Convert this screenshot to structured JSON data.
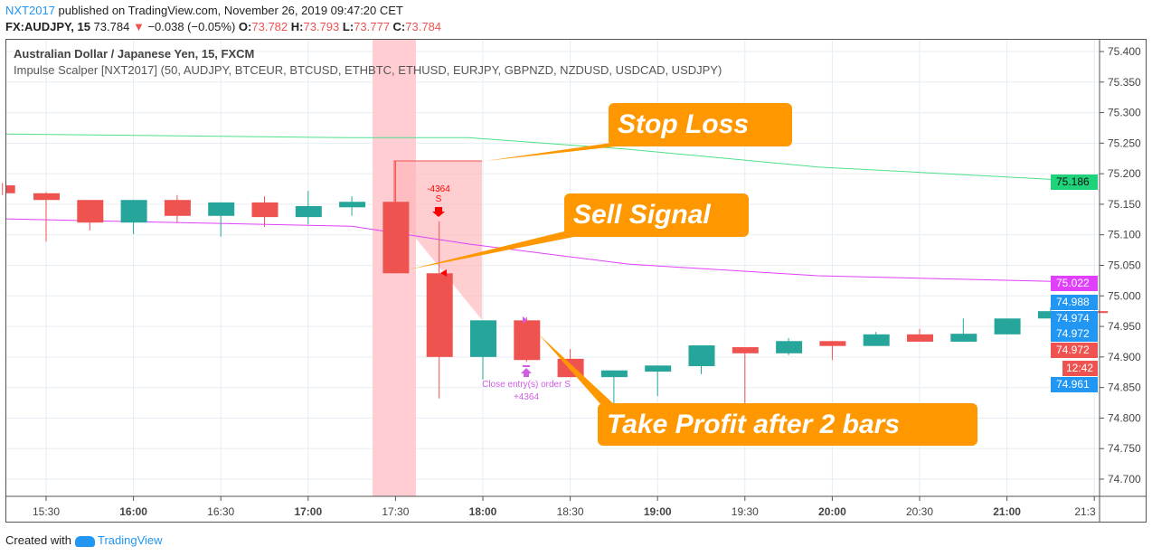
{
  "header": {
    "author": "NXT2017",
    "published": "published on TradingView.com, November 26, 2019 09:47:20 CET",
    "symbol": "FX:AUDJPY, 15",
    "last": "73.784",
    "change": "−0.038 (−0.05%)",
    "o_label": "O:",
    "o": "73.782",
    "h_label": "H:",
    "h": "73.793",
    "l_label": "L:",
    "l": "73.777",
    "c_label": "C:",
    "c": "73.784"
  },
  "legend": {
    "title": "Australian Dollar / Japanese Yen, 15, FXCM",
    "indicator": "Impulse Scalper [NXT2017] (50, AUDJPY, BTCEUR, BTCUSD, ETHBTC, ETHUSD, EURJPY, GBPNZD, NZDUSD, USDCAD, USDJPY)"
  },
  "colors": {
    "up": "#26a69a",
    "down": "#ef5350",
    "ma_slow": "#4ee08a",
    "ma_fast": "#e040fb",
    "callout": "#ff9800",
    "signal": "#ff0000",
    "close": "#d05ce3"
  },
  "chart_data": {
    "type": "candlestick",
    "ylim": [
      74.66,
      75.435
    ],
    "y_ticks": [
      "75.400",
      "75.350",
      "75.300",
      "75.250",
      "75.200",
      "75.150",
      "75.100",
      "75.050",
      "75.000",
      "74.950",
      "74.900",
      "74.850",
      "74.800",
      "74.750",
      "74.700"
    ],
    "x_ticks": [
      "15:30",
      "16:00",
      "16:30",
      "17:00",
      "17:30",
      "18:00",
      "18:30",
      "19:00",
      "19:30",
      "20:00",
      "20:30",
      "21:00",
      "21:3"
    ],
    "candles": [
      {
        "t": "15:15",
        "o": 75.181,
        "h": 75.185,
        "l": 75.165,
        "c": 75.168
      },
      {
        "t": "15:30",
        "o": 75.168,
        "h": 75.17,
        "l": 75.089,
        "c": 75.157
      },
      {
        "t": "15:45",
        "o": 75.157,
        "h": 75.157,
        "l": 75.107,
        "c": 75.12
      },
      {
        "t": "16:00",
        "o": 75.12,
        "h": 75.157,
        "l": 75.101,
        "c": 75.157
      },
      {
        "t": "16:15",
        "o": 75.157,
        "h": 75.165,
        "l": 75.12,
        "c": 75.131
      },
      {
        "t": "16:30",
        "o": 75.131,
        "h": 75.153,
        "l": 75.097,
        "c": 75.153
      },
      {
        "t": "16:45",
        "o": 75.153,
        "h": 75.163,
        "l": 75.113,
        "c": 75.129
      },
      {
        "t": "17:00",
        "o": 75.129,
        "h": 75.172,
        "l": 75.117,
        "c": 75.147
      },
      {
        "t": "17:15",
        "o": 75.145,
        "h": 75.163,
        "l": 75.131,
        "c": 75.154
      },
      {
        "t": "17:30",
        "o": 75.154,
        "h": 75.221,
        "l": 75.037,
        "c": 75.037
      },
      {
        "t": "17:45",
        "o": 75.037,
        "h": 75.122,
        "l": 74.832,
        "c": 74.9
      },
      {
        "t": "18:00",
        "o": 74.9,
        "h": 74.96,
        "l": 74.863,
        "c": 74.96
      },
      {
        "t": "18:15",
        "o": 74.96,
        "h": 74.965,
        "l": 74.892,
        "c": 74.895
      },
      {
        "t": "18:30",
        "o": 74.897,
        "h": 74.913,
        "l": 74.867,
        "c": 74.867
      },
      {
        "t": "18:45",
        "o": 74.867,
        "h": 74.878,
        "l": 74.823,
        "c": 74.878
      },
      {
        "t": "19:00",
        "o": 74.876,
        "h": 74.886,
        "l": 74.836,
        "c": 74.886
      },
      {
        "t": "19:15",
        "o": 74.885,
        "h": 74.919,
        "l": 74.872,
        "c": 74.919
      },
      {
        "t": "19:30",
        "o": 74.916,
        "h": 74.916,
        "l": 74.824,
        "c": 74.906
      },
      {
        "t": "19:45",
        "o": 74.906,
        "h": 74.931,
        "l": 74.903,
        "c": 74.926
      },
      {
        "t": "20:00",
        "o": 74.926,
        "h": 74.926,
        "l": 74.895,
        "c": 74.918
      },
      {
        "t": "20:15",
        "o": 74.918,
        "h": 74.941,
        "l": 74.918,
        "c": 74.937
      },
      {
        "t": "20:30",
        "o": 74.937,
        "h": 74.946,
        "l": 74.925,
        "c": 74.925
      },
      {
        "t": "20:45",
        "o": 74.925,
        "h": 74.963,
        "l": 74.925,
        "c": 74.938
      },
      {
        "t": "21:00",
        "o": 74.937,
        "h": 74.963,
        "l": 74.937,
        "c": 74.963
      },
      {
        "t": "21:15",
        "o": 74.963,
        "h": 74.981,
        "l": 74.963,
        "c": 74.975
      },
      {
        "t": "21:30",
        "o": 74.975,
        "h": 74.976,
        "l": 74.972,
        "c": 74.972
      }
    ],
    "ma_slow": [
      75.265,
      75.259,
      75.259,
      75.24,
      75.211,
      75.187
    ],
    "ma_fast": [
      75.126,
      75.114,
      75.085,
      75.052,
      75.033,
      75.022
    ],
    "ma_points_time": [
      "15:15",
      "17:15",
      "17:55",
      "18:50",
      "19:55",
      "21:30"
    ],
    "price_labels": [
      {
        "text": "75.186",
        "color": "#1ed37a"
      },
      {
        "text": "75.022",
        "color": "#e040fb"
      },
      {
        "text": "74.988",
        "color": "#2196f3"
      },
      {
        "text": "74.974",
        "color": "#2196f3"
      },
      {
        "text": "74.972",
        "color": "#2196f3"
      },
      {
        "text": "74.972",
        "color": "#ef5350"
      },
      {
        "text": "12:42",
        "color": "#ef5350"
      },
      {
        "text": "74.961",
        "color": "#2196f3"
      }
    ]
  },
  "signals": {
    "entry_value": "-4364",
    "entry_tag": "S",
    "close_text": "Close entry(s) order S",
    "close_value": "+4364"
  },
  "callouts": {
    "stop_loss": "Stop Loss",
    "sell_signal": "Sell Signal",
    "take_profit": "Take Profit after 2 bars"
  },
  "footer": {
    "created": "Created with",
    "brand": "TradingView"
  }
}
